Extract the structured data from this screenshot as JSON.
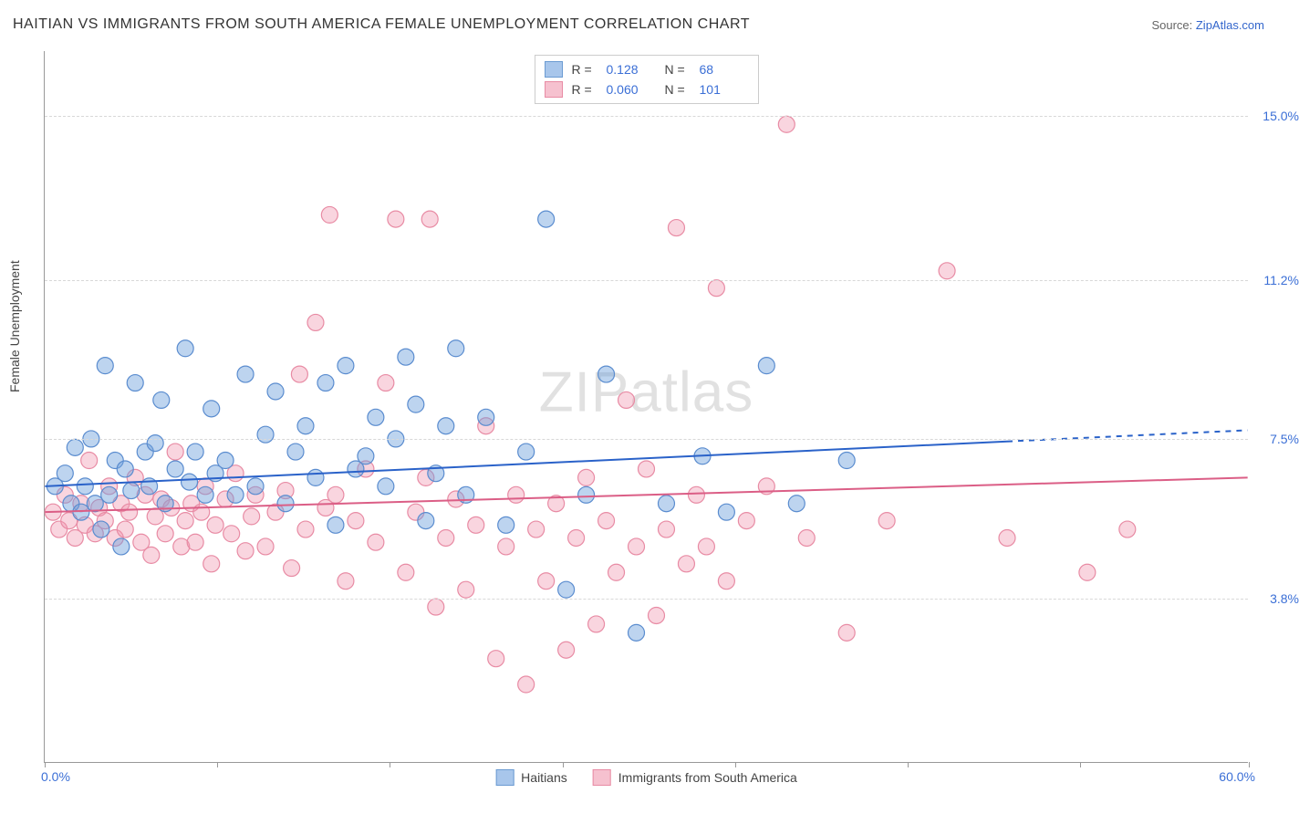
{
  "title": "HAITIAN VS IMMIGRANTS FROM SOUTH AMERICA FEMALE UNEMPLOYMENT CORRELATION CHART",
  "source_prefix": "Source: ",
  "source_name": "ZipAtlas.com",
  "y_axis_label": "Female Unemployment",
  "watermark_a": "ZIP",
  "watermark_b": "atlas",
  "chart": {
    "type": "scatter",
    "xlim": [
      0,
      60
    ],
    "ylim": [
      0,
      16.5
    ],
    "x_tick_positions": [
      0,
      8.6,
      17.2,
      25.8,
      34.4,
      43.0,
      51.6,
      60.0
    ],
    "x_min_label": "0.0%",
    "x_max_label": "60.0%",
    "y_gridlines": [
      {
        "value": 3.8,
        "label": "3.8%"
      },
      {
        "value": 7.5,
        "label": "7.5%"
      },
      {
        "value": 11.2,
        "label": "11.2%"
      },
      {
        "value": 15.0,
        "label": "15.0%"
      }
    ],
    "background_color": "#ffffff",
    "grid_color": "#d8d8d8",
    "marker_radius": 9,
    "marker_stroke_width": 1.2,
    "line_width": 2
  },
  "series_a": {
    "label": "Haitians",
    "fill": "rgba(108,160,220,0.45)",
    "stroke": "#5a8ccf",
    "swatch_fill": "#a8c6eb",
    "swatch_border": "#6b9bd2",
    "trend_color": "#2a62c9",
    "R": "0.128",
    "N": "68",
    "trend": {
      "y_at_x0": 6.4,
      "y_at_x60": 7.7,
      "dash_from_x": 48
    },
    "points": [
      [
        0.5,
        6.4
      ],
      [
        1.0,
        6.7
      ],
      [
        1.3,
        6.0
      ],
      [
        1.5,
        7.3
      ],
      [
        1.8,
        5.8
      ],
      [
        2.0,
        6.4
      ],
      [
        2.3,
        7.5
      ],
      [
        2.5,
        6.0
      ],
      [
        2.8,
        5.4
      ],
      [
        3.0,
        9.2
      ],
      [
        3.2,
        6.2
      ],
      [
        3.5,
        7.0
      ],
      [
        3.8,
        5.0
      ],
      [
        4.0,
        6.8
      ],
      [
        4.3,
        6.3
      ],
      [
        4.5,
        8.8
      ],
      [
        5.0,
        7.2
      ],
      [
        5.2,
        6.4
      ],
      [
        5.5,
        7.4
      ],
      [
        5.8,
        8.4
      ],
      [
        6.0,
        6.0
      ],
      [
        6.5,
        6.8
      ],
      [
        7.0,
        9.6
      ],
      [
        7.2,
        6.5
      ],
      [
        7.5,
        7.2
      ],
      [
        8.0,
        6.2
      ],
      [
        8.3,
        8.2
      ],
      [
        8.5,
        6.7
      ],
      [
        9.0,
        7.0
      ],
      [
        9.5,
        6.2
      ],
      [
        10.0,
        9.0
      ],
      [
        10.5,
        6.4
      ],
      [
        11.0,
        7.6
      ],
      [
        11.5,
        8.6
      ],
      [
        12.0,
        6.0
      ],
      [
        12.5,
        7.2
      ],
      [
        13.0,
        7.8
      ],
      [
        13.5,
        6.6
      ],
      [
        14.0,
        8.8
      ],
      [
        14.5,
        5.5
      ],
      [
        15.0,
        9.2
      ],
      [
        15.5,
        6.8
      ],
      [
        16.0,
        7.1
      ],
      [
        16.5,
        8.0
      ],
      [
        17.0,
        6.4
      ],
      [
        17.5,
        7.5
      ],
      [
        18.0,
        9.4
      ],
      [
        18.5,
        8.3
      ],
      [
        19.0,
        5.6
      ],
      [
        19.5,
        6.7
      ],
      [
        20.0,
        7.8
      ],
      [
        20.5,
        9.6
      ],
      [
        21.0,
        6.2
      ],
      [
        22.0,
        8.0
      ],
      [
        23.0,
        5.5
      ],
      [
        24.0,
        7.2
      ],
      [
        25.0,
        12.6
      ],
      [
        26.0,
        4.0
      ],
      [
        27.0,
        6.2
      ],
      [
        28.0,
        9.0
      ],
      [
        29.5,
        3.0
      ],
      [
        31.0,
        6.0
      ],
      [
        32.8,
        7.1
      ],
      [
        34.0,
        5.8
      ],
      [
        36.0,
        9.2
      ],
      [
        37.5,
        6.0
      ],
      [
        40.0,
        7.0
      ]
    ]
  },
  "series_b": {
    "label": "Immigrants from South America",
    "fill": "rgba(240,150,175,0.40)",
    "stroke": "#e88ba4",
    "swatch_fill": "#f6c1cf",
    "swatch_border": "#e88ba4",
    "trend_color": "#db5e86",
    "R": "0.060",
    "N": "101",
    "trend": {
      "y_at_x0": 5.8,
      "y_at_x60": 6.6,
      "dash_from_x": 60
    },
    "points": [
      [
        0.4,
        5.8
      ],
      [
        0.7,
        5.4
      ],
      [
        1.0,
        6.2
      ],
      [
        1.2,
        5.6
      ],
      [
        1.5,
        5.2
      ],
      [
        1.8,
        6.0
      ],
      [
        2.0,
        5.5
      ],
      [
        2.2,
        7.0
      ],
      [
        2.5,
        5.3
      ],
      [
        2.7,
        5.9
      ],
      [
        3.0,
        5.6
      ],
      [
        3.2,
        6.4
      ],
      [
        3.5,
        5.2
      ],
      [
        3.8,
        6.0
      ],
      [
        4.0,
        5.4
      ],
      [
        4.2,
        5.8
      ],
      [
        4.5,
        6.6
      ],
      [
        4.8,
        5.1
      ],
      [
        5.0,
        6.2
      ],
      [
        5.3,
        4.8
      ],
      [
        5.5,
        5.7
      ],
      [
        5.8,
        6.1
      ],
      [
        6.0,
        5.3
      ],
      [
        6.3,
        5.9
      ],
      [
        6.5,
        7.2
      ],
      [
        6.8,
        5.0
      ],
      [
        7.0,
        5.6
      ],
      [
        7.3,
        6.0
      ],
      [
        7.5,
        5.1
      ],
      [
        7.8,
        5.8
      ],
      [
        8.0,
        6.4
      ],
      [
        8.3,
        4.6
      ],
      [
        8.5,
        5.5
      ],
      [
        9.0,
        6.1
      ],
      [
        9.3,
        5.3
      ],
      [
        9.5,
        6.7
      ],
      [
        10.0,
        4.9
      ],
      [
        10.3,
        5.7
      ],
      [
        10.5,
        6.2
      ],
      [
        11.0,
        5.0
      ],
      [
        11.5,
        5.8
      ],
      [
        12.0,
        6.3
      ],
      [
        12.3,
        4.5
      ],
      [
        12.7,
        9.0
      ],
      [
        13.0,
        5.4
      ],
      [
        13.5,
        10.2
      ],
      [
        14.0,
        5.9
      ],
      [
        14.2,
        12.7
      ],
      [
        14.5,
        6.2
      ],
      [
        15.0,
        4.2
      ],
      [
        15.5,
        5.6
      ],
      [
        16.0,
        6.8
      ],
      [
        16.5,
        5.1
      ],
      [
        17.0,
        8.8
      ],
      [
        17.5,
        12.6
      ],
      [
        18.0,
        4.4
      ],
      [
        18.5,
        5.8
      ],
      [
        19.0,
        6.6
      ],
      [
        19.2,
        12.6
      ],
      [
        19.5,
        3.6
      ],
      [
        20.0,
        5.2
      ],
      [
        20.5,
        6.1
      ],
      [
        21.0,
        4.0
      ],
      [
        21.5,
        5.5
      ],
      [
        22.0,
        7.8
      ],
      [
        22.5,
        2.4
      ],
      [
        23.0,
        5.0
      ],
      [
        23.5,
        6.2
      ],
      [
        24.0,
        1.8
      ],
      [
        24.5,
        5.4
      ],
      [
        25.0,
        4.2
      ],
      [
        25.5,
        6.0
      ],
      [
        26.0,
        2.6
      ],
      [
        26.5,
        5.2
      ],
      [
        27.0,
        6.6
      ],
      [
        27.5,
        3.2
      ],
      [
        28.0,
        5.6
      ],
      [
        28.5,
        4.4
      ],
      [
        29.0,
        8.4
      ],
      [
        29.5,
        5.0
      ],
      [
        30.0,
        6.8
      ],
      [
        30.5,
        3.4
      ],
      [
        31.0,
        5.4
      ],
      [
        31.5,
        12.4
      ],
      [
        32.0,
        4.6
      ],
      [
        32.5,
        6.2
      ],
      [
        33.0,
        5.0
      ],
      [
        33.5,
        11.0
      ],
      [
        34.0,
        4.2
      ],
      [
        35.0,
        5.6
      ],
      [
        36.0,
        6.4
      ],
      [
        37.0,
        14.8
      ],
      [
        38.0,
        5.2
      ],
      [
        40.0,
        3.0
      ],
      [
        42.0,
        5.6
      ],
      [
        45.0,
        11.4
      ],
      [
        48.0,
        5.2
      ],
      [
        52.0,
        4.4
      ],
      [
        54.0,
        5.4
      ]
    ]
  },
  "legend_top": {
    "r_label": "R  =",
    "n_label": "N  ="
  }
}
